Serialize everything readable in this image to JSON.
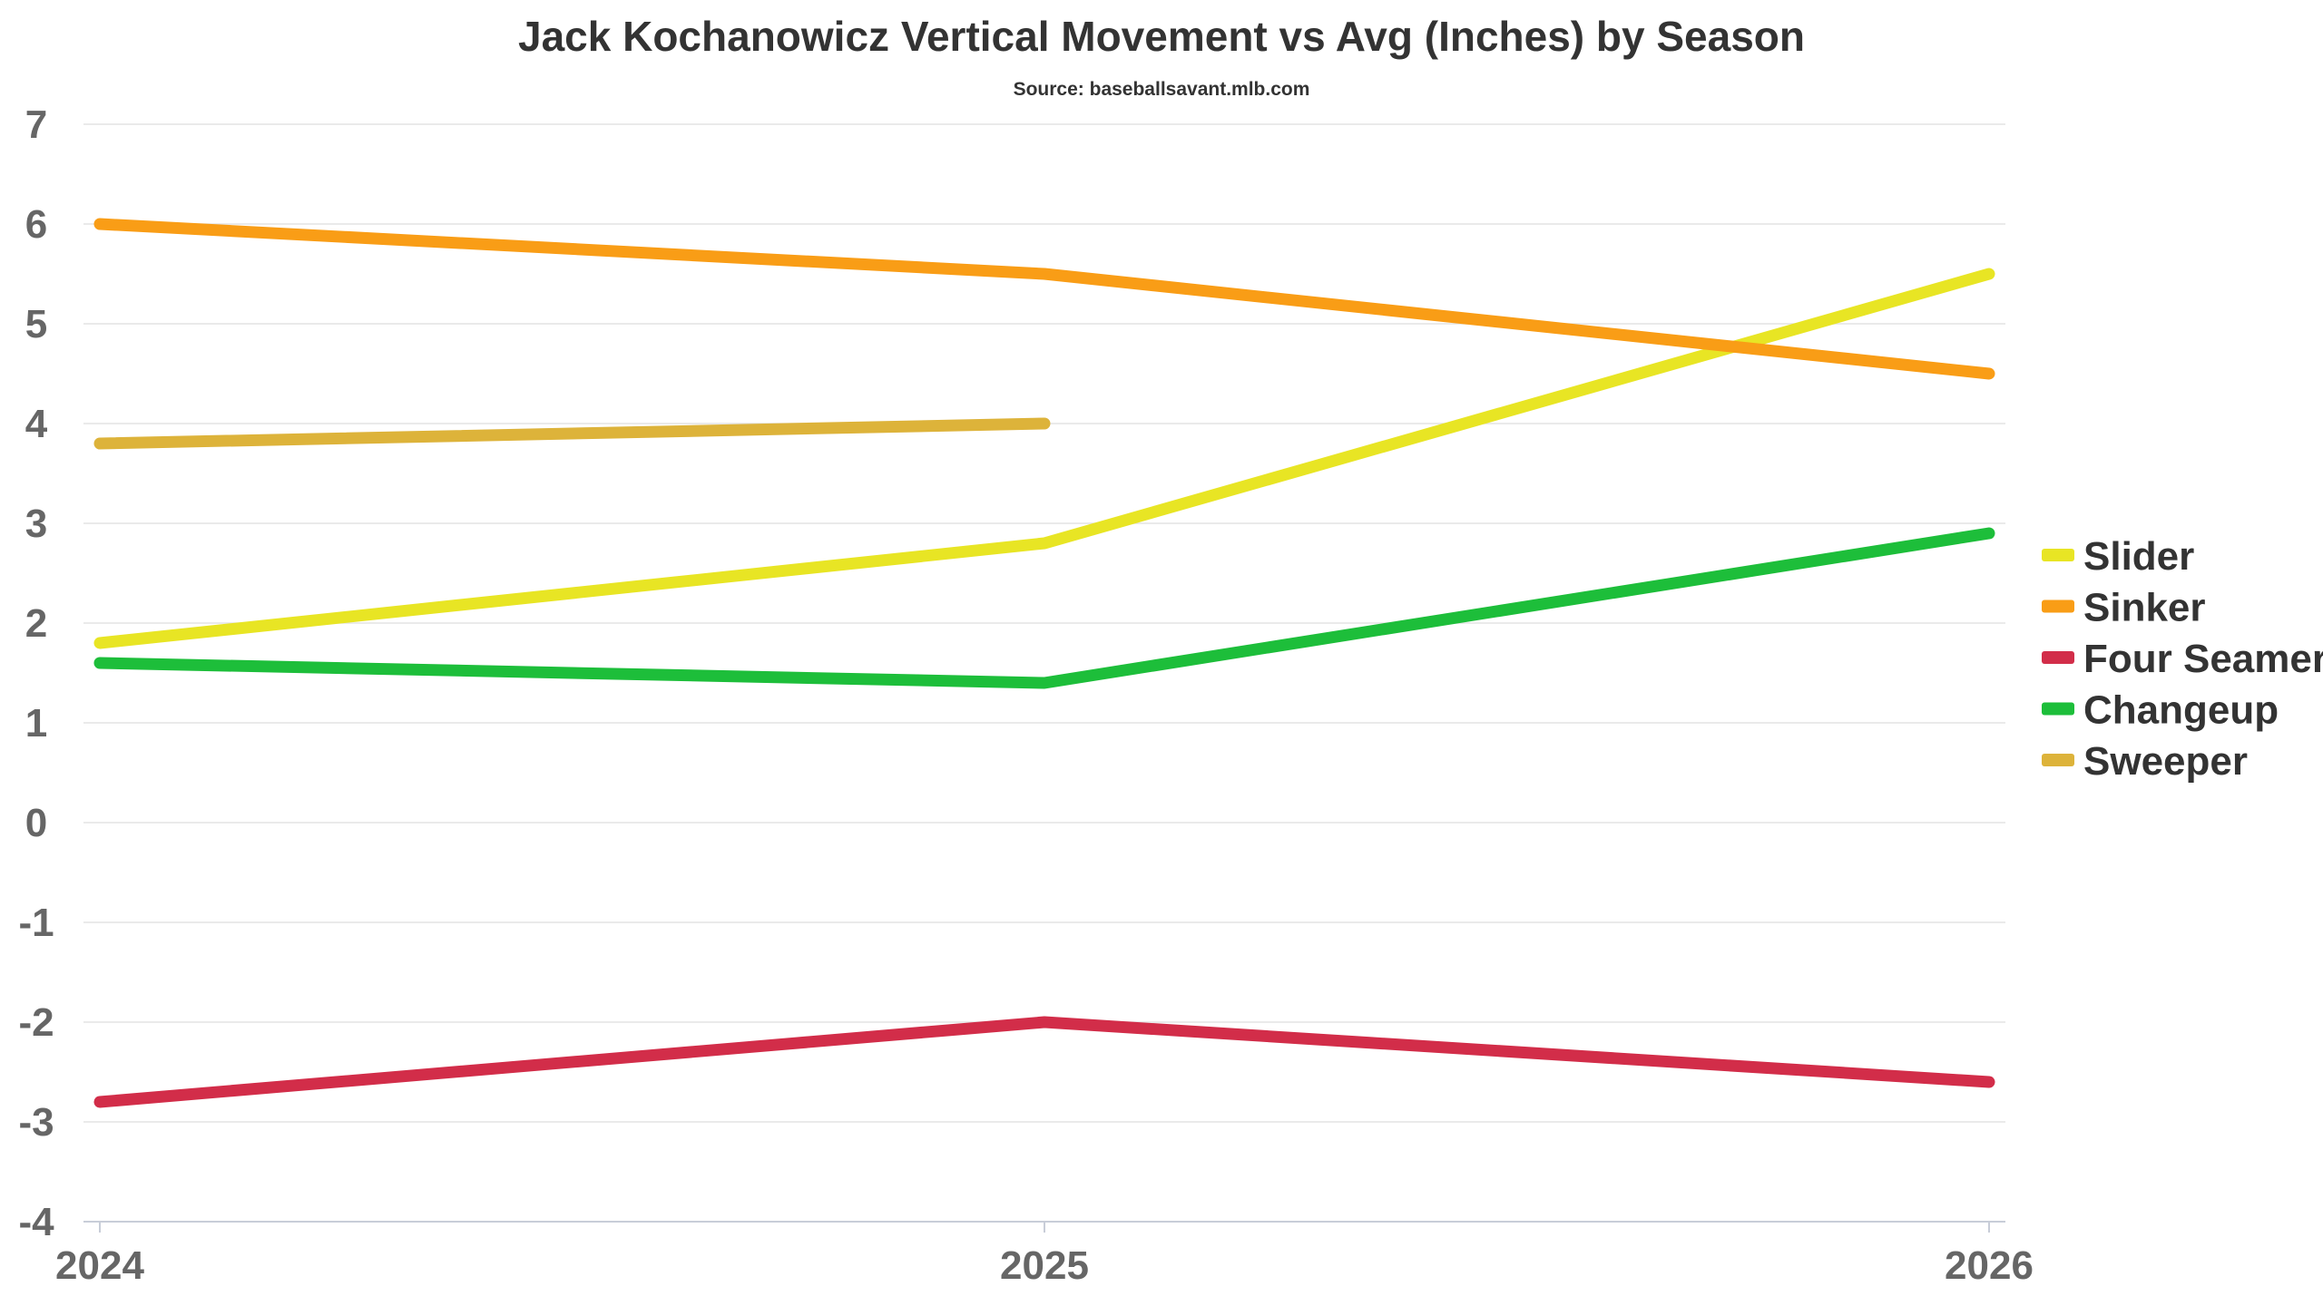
{
  "chart_data": {
    "type": "line",
    "title": "Jack Kochanowicz Vertical Movement vs Avg (Inches) by Season",
    "subtitle": "Source: baseballsavant.mlb.com",
    "xlabel": "",
    "ylabel": "",
    "x": [
      "2024",
      "2025",
      "2026"
    ],
    "ylim": [
      -4,
      7
    ],
    "yticks": [
      7,
      6,
      5,
      4,
      3,
      2,
      1,
      0,
      -1,
      -2,
      -3,
      -4
    ],
    "grid": true,
    "legend_position": "right",
    "series": [
      {
        "name": "Slider",
        "color": "#e8e524",
        "values": [
          1.8,
          2.8,
          5.5
        ]
      },
      {
        "name": "Sinker",
        "color": "#f99d16",
        "values": [
          6.0,
          5.5,
          4.5
        ]
      },
      {
        "name": "Four Seamer",
        "color": "#d22d49",
        "values": [
          -2.8,
          -2.0,
          -2.6
        ]
      },
      {
        "name": "Changeup",
        "color": "#1dbe3a",
        "values": [
          1.6,
          1.4,
          2.9
        ]
      },
      {
        "name": "Sweeper",
        "color": "#ddb33a",
        "values": [
          3.8,
          4.0,
          null
        ]
      }
    ]
  }
}
